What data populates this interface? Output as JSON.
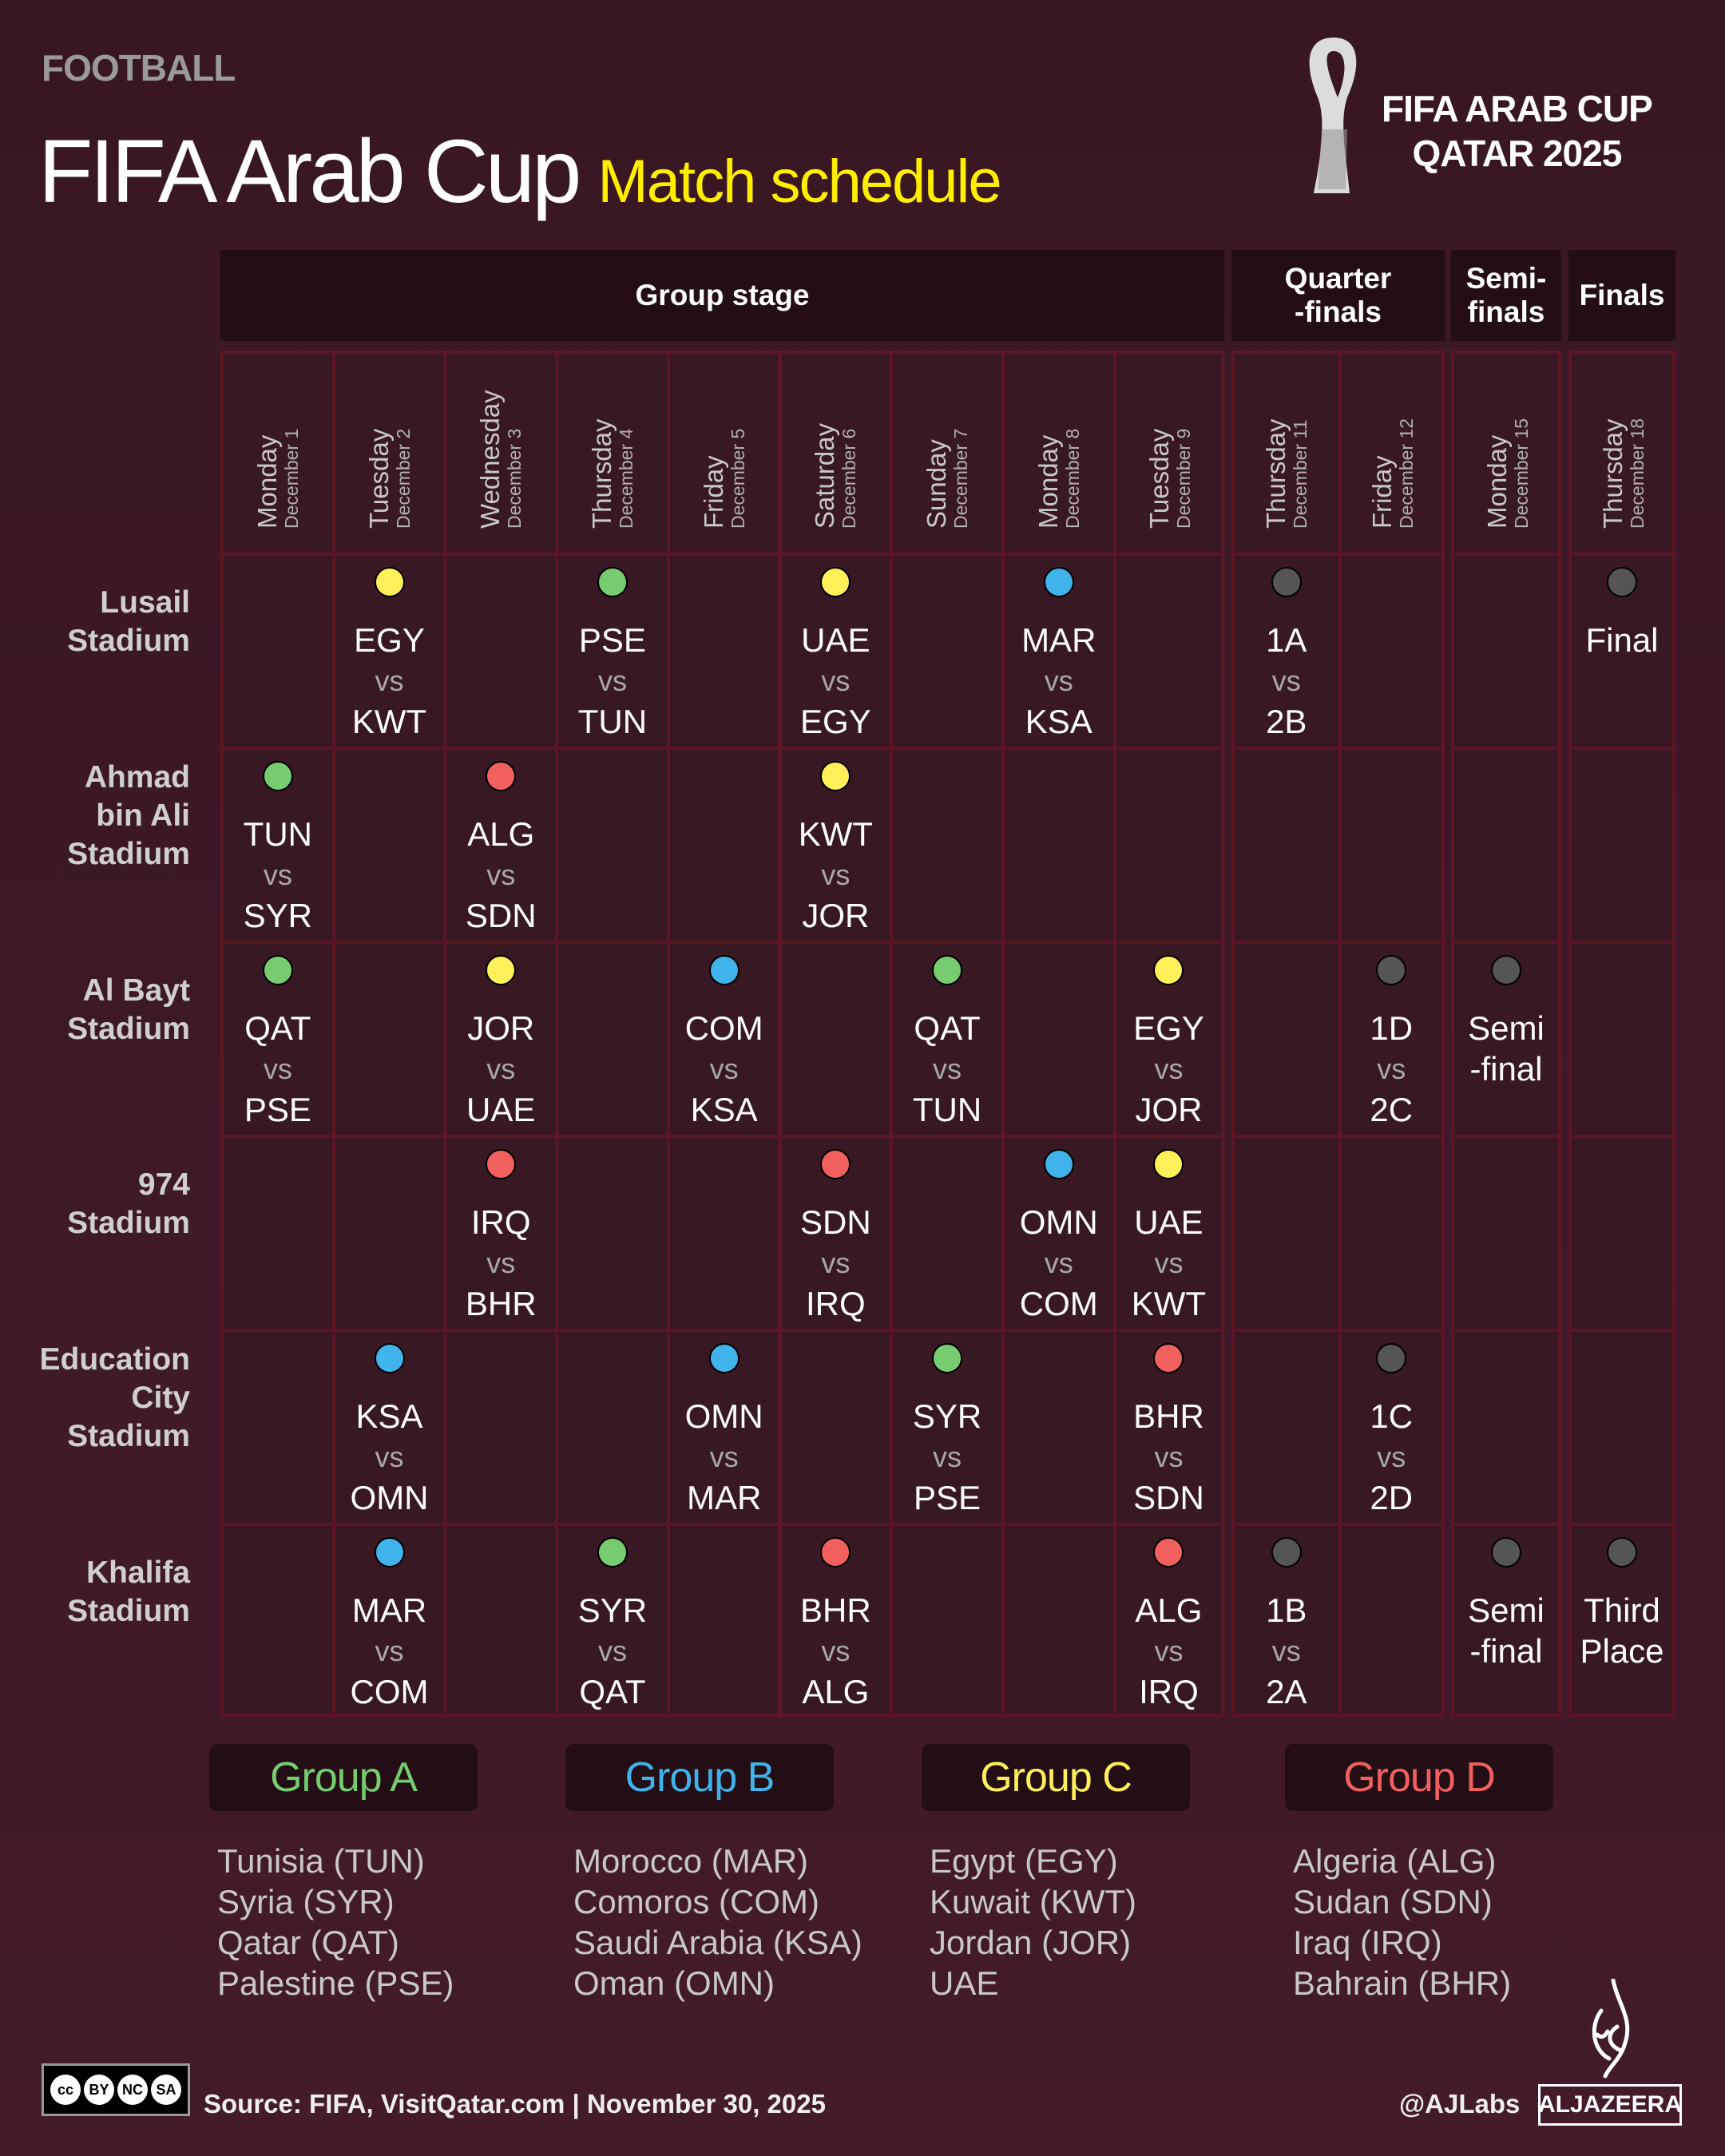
{
  "header": {
    "kicker": "FOOTBALL",
    "title": "FIFA Arab Cup",
    "subtitle": "Match schedule",
    "logo_line1": "FIFA ARAB CUP",
    "logo_line2": "QATAR 2025"
  },
  "stages": [
    "Group stage",
    "Quarter\n-finals",
    "Semi-\nfinals",
    "Finals"
  ],
  "dates": [
    {
      "day": "Monday",
      "date": "December 1"
    },
    {
      "day": "Tuesday",
      "date": "December 2"
    },
    {
      "day": "Wednesday",
      "date": "December 3"
    },
    {
      "day": "Thursday",
      "date": "December 4"
    },
    {
      "day": "Friday",
      "date": "December 5"
    },
    {
      "day": "Saturday",
      "date": "December 6"
    },
    {
      "day": "Sunday",
      "date": "December 7"
    },
    {
      "day": "Monday",
      "date": "December 8"
    },
    {
      "day": "Tuesday",
      "date": "December 9"
    },
    {
      "day": "Thursday",
      "date": "December 11"
    },
    {
      "day": "Friday",
      "date": "December 12"
    },
    {
      "day": "Monday",
      "date": "December 15"
    },
    {
      "day": "Thursday",
      "date": "December 18"
    }
  ],
  "colors": {
    "A": "#76cc6e",
    "B": "#3fb3ea",
    "C": "#fff05a",
    "D": "#f25f5f",
    "KO": "#555555"
  },
  "venues": [
    {
      "name": "Lusail\nStadium",
      "matches": [
        null,
        {
          "g": "C",
          "lines": [
            "EGY",
            "vs",
            "KWT"
          ]
        },
        null,
        {
          "g": "A",
          "lines": [
            "PSE",
            "vs",
            "TUN"
          ]
        },
        null,
        {
          "g": "C",
          "lines": [
            "UAE",
            "vs",
            "EGY"
          ]
        },
        null,
        {
          "g": "B",
          "lines": [
            "MAR",
            "vs",
            "KSA"
          ]
        },
        null,
        {
          "g": "KO",
          "lines": [
            "1A",
            "vs",
            "2B"
          ]
        },
        null,
        null,
        {
          "g": "KO",
          "lines": [
            "Final"
          ]
        }
      ]
    },
    {
      "name": "Ahmad\nbin Ali\nStadium",
      "matches": [
        {
          "g": "A",
          "lines": [
            "TUN",
            "vs",
            "SYR"
          ]
        },
        null,
        {
          "g": "D",
          "lines": [
            "ALG",
            "vs",
            "SDN"
          ]
        },
        null,
        null,
        {
          "g": "C",
          "lines": [
            "KWT",
            "vs",
            "JOR"
          ]
        },
        null,
        null,
        null,
        null,
        null,
        null,
        null
      ]
    },
    {
      "name": "Al Bayt\nStadium",
      "matches": [
        {
          "g": "A",
          "lines": [
            "QAT",
            "vs",
            "PSE"
          ]
        },
        null,
        {
          "g": "C",
          "lines": [
            "JOR",
            "vs",
            "UAE"
          ]
        },
        null,
        {
          "g": "B",
          "lines": [
            "COM",
            "vs",
            "KSA"
          ]
        },
        null,
        {
          "g": "A",
          "lines": [
            "QAT",
            "vs",
            "TUN"
          ]
        },
        null,
        {
          "g": "C",
          "lines": [
            "EGY",
            "vs",
            "JOR"
          ]
        },
        null,
        {
          "g": "KO",
          "lines": [
            "1D",
            "vs",
            "2C"
          ]
        },
        {
          "g": "KO",
          "lines": [
            "Semi",
            "-final"
          ]
        },
        null
      ]
    },
    {
      "name": "974\nStadium",
      "matches": [
        null,
        null,
        {
          "g": "D",
          "lines": [
            "IRQ",
            "vs",
            "BHR"
          ]
        },
        null,
        null,
        {
          "g": "D",
          "lines": [
            "SDN",
            "vs",
            "IRQ"
          ]
        },
        null,
        {
          "g": "B",
          "lines": [
            "OMN",
            "vs",
            "COM"
          ]
        },
        {
          "g": "C",
          "lines": [
            "UAE",
            "vs",
            "KWT"
          ]
        },
        null,
        null,
        null,
        null
      ]
    },
    {
      "name": "Education\nCity\nStadium",
      "matches": [
        null,
        {
          "g": "B",
          "lines": [
            "KSA",
            "vs",
            "OMN"
          ]
        },
        null,
        null,
        {
          "g": "B",
          "lines": [
            "OMN",
            "vs",
            "MAR"
          ]
        },
        null,
        {
          "g": "A",
          "lines": [
            "SYR",
            "vs",
            "PSE"
          ]
        },
        null,
        {
          "g": "D",
          "lines": [
            "BHR",
            "vs",
            "SDN"
          ]
        },
        null,
        {
          "g": "KO",
          "lines": [
            "1C",
            "vs",
            "2D"
          ]
        },
        null,
        null
      ]
    },
    {
      "name": "Khalifa\nStadium",
      "matches": [
        null,
        {
          "g": "B",
          "lines": [
            "MAR",
            "vs",
            "COM"
          ]
        },
        null,
        {
          "g": "A",
          "lines": [
            "SYR",
            "vs",
            "QAT"
          ]
        },
        null,
        {
          "g": "D",
          "lines": [
            "BHR",
            "vs",
            "ALG"
          ]
        },
        null,
        null,
        {
          "g": "D",
          "lines": [
            "ALG",
            "vs",
            "IRQ"
          ]
        },
        {
          "g": "KO",
          "lines": [
            "1B",
            "vs",
            "2A"
          ]
        },
        null,
        {
          "g": "KO",
          "lines": [
            "Semi",
            "-final"
          ]
        },
        {
          "g": "KO",
          "lines": [
            "Third",
            "Place"
          ]
        }
      ]
    }
  ],
  "groups": [
    {
      "id": "A",
      "label": "Group A",
      "teams": [
        "Tunisia (TUN)",
        "Syria (SYR)",
        "Qatar (QAT)",
        "Palestine (PSE)"
      ]
    },
    {
      "id": "B",
      "label": "Group B",
      "teams": [
        "Morocco (MAR)",
        "Comoros (COM)",
        "Saudi Arabia (KSA)",
        "Oman (OMN)"
      ]
    },
    {
      "id": "C",
      "label": "Group C",
      "teams": [
        "Egypt (EGY)",
        "Kuwait (KWT)",
        "Jordan (JOR)",
        "UAE"
      ]
    },
    {
      "id": "D",
      "label": "Group D",
      "teams": [
        "Algeria (ALG)",
        "Sudan (SDN)",
        "Iraq (IRQ)",
        "Bahrain (BHR)"
      ]
    }
  ],
  "footer": {
    "source": "Source:  FIFA, VisitQatar.com | November 30, 2025",
    "handle": "@AJLabs",
    "brand": "ALJAZEERA",
    "license": [
      "cc",
      "BY",
      "NC",
      "SA"
    ]
  }
}
